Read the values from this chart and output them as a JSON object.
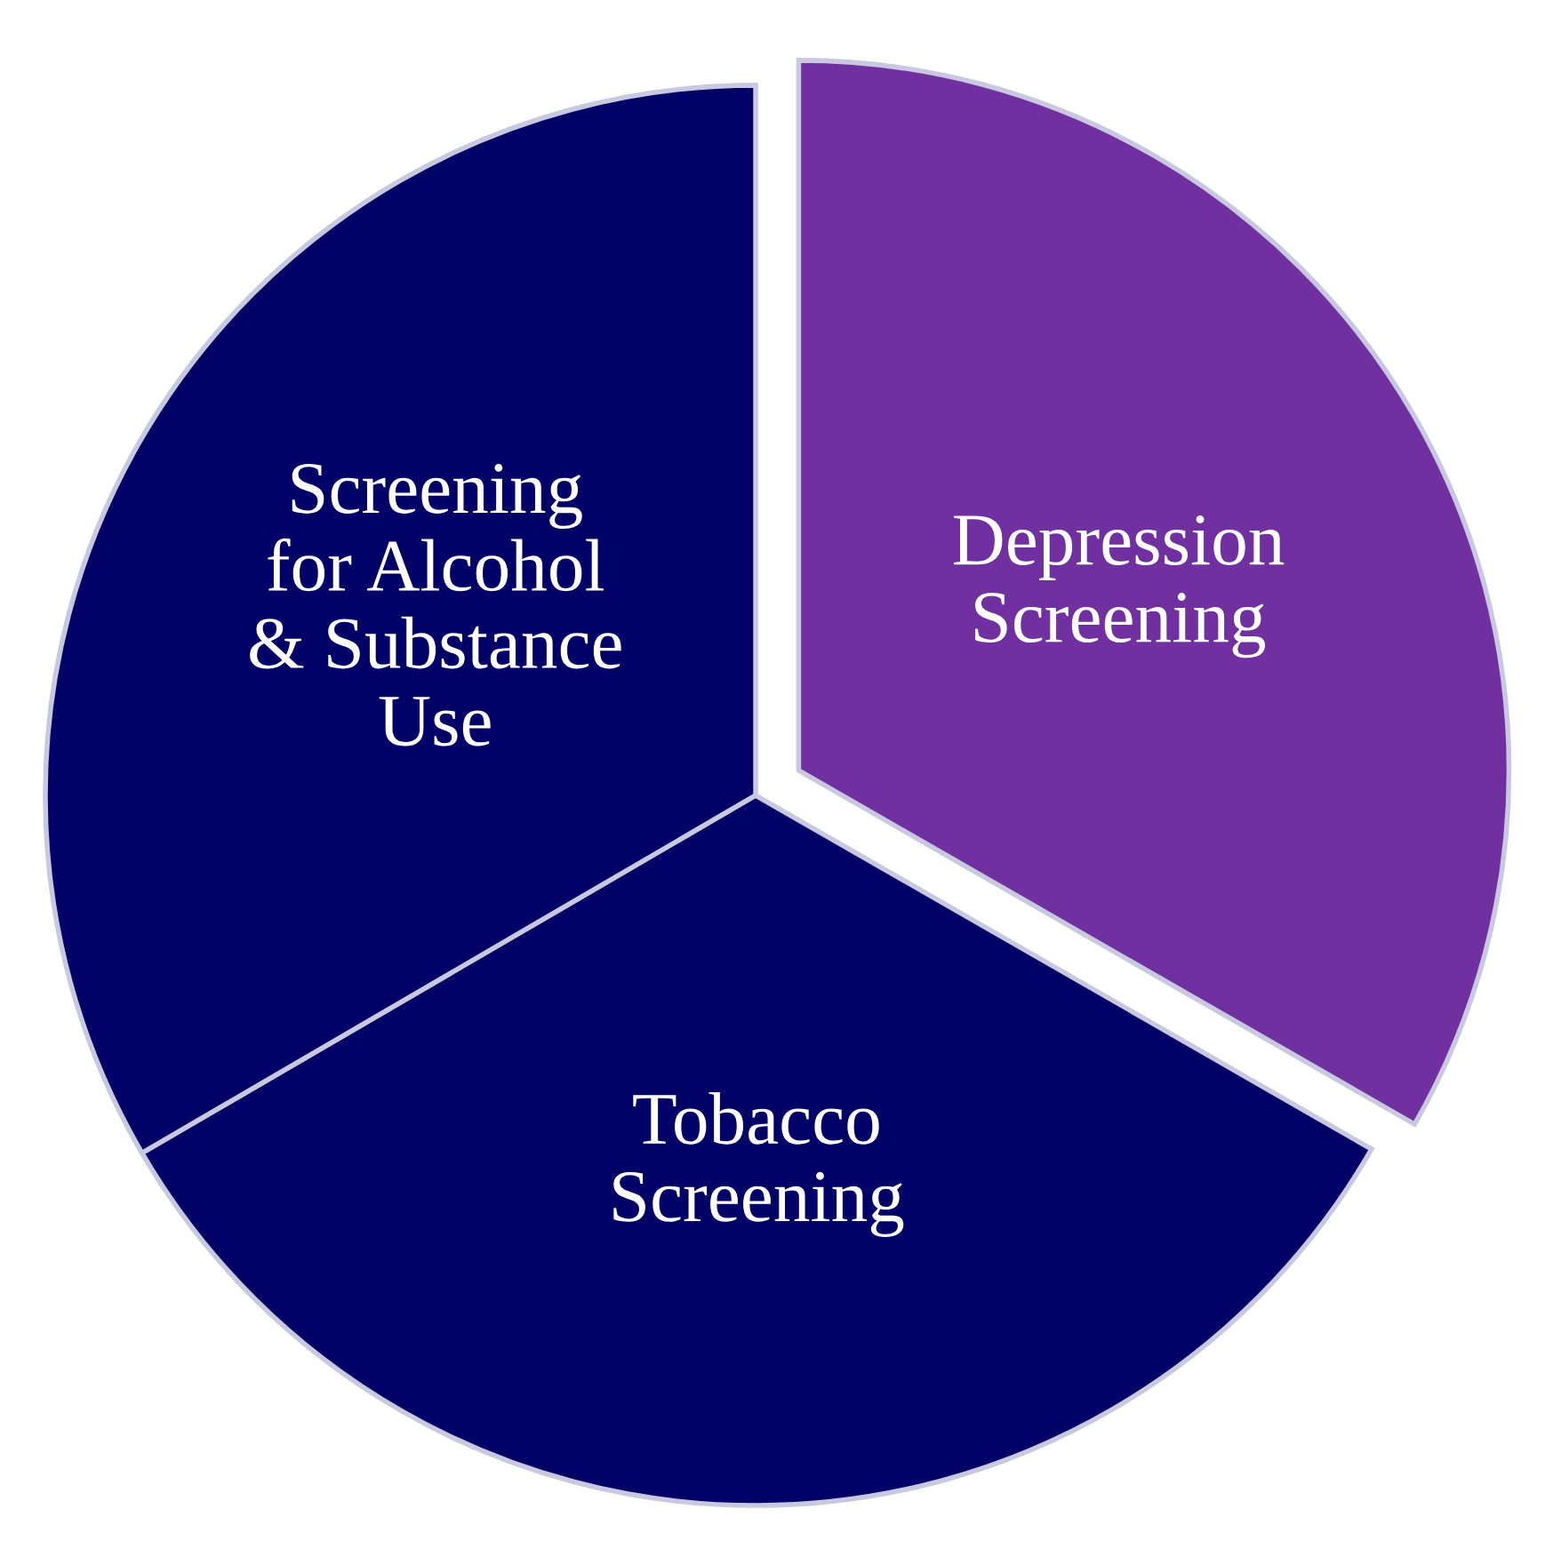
{
  "chart_data": {
    "type": "pie",
    "categories": [
      "Depression\nScreening",
      "Tobacco\nScreening",
      "Screening\nfor Alcohol\n& Substance\nUse"
    ],
    "values": [
      33.3,
      33.3,
      33.4
    ],
    "colors": [
      "#7030a0",
      "#000066",
      "#000066"
    ]
  }
}
